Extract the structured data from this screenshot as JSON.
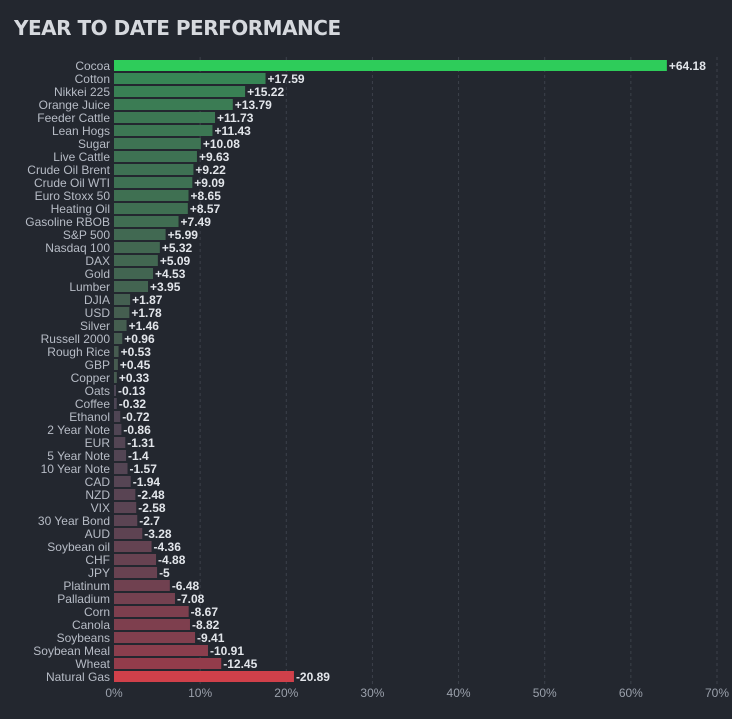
{
  "chart_data": {
    "type": "bar",
    "orientation": "horizontal",
    "title": "YEAR TO DATE PERFORMANCE",
    "xlabel": "",
    "ylabel": "",
    "xlim": [
      0,
      70
    ],
    "x_ticks": [
      "0%",
      "10%",
      "20%",
      "30%",
      "40%",
      "50%",
      "60%",
      "70%"
    ],
    "grid": true,
    "colors": {
      "positive_max": "#2ecc5a",
      "positive": "#3a8a5a",
      "negative": "#7a3a4a",
      "negative_max": "#d0404a"
    },
    "categories": [
      "Cocoa",
      "Cotton",
      "Nikkei 225",
      "Orange Juice",
      "Feeder Cattle",
      "Lean Hogs",
      "Sugar",
      "Live Cattle",
      "Crude Oil Brent",
      "Crude Oil WTI",
      "Euro Stoxx 50",
      "Heating Oil",
      "Gasoline RBOB",
      "S&P 500",
      "Nasdaq 100",
      "DAX",
      "Gold",
      "Lumber",
      "DJIA",
      "USD",
      "Silver",
      "Russell 2000",
      "Rough Rice",
      "GBP",
      "Copper",
      "Oats",
      "Coffee",
      "Ethanol",
      "2 Year Note",
      "EUR",
      "5 Year Note",
      "10 Year Note",
      "CAD",
      "NZD",
      "VIX",
      "30 Year Bond",
      "AUD",
      "Soybean oil",
      "CHF",
      "JPY",
      "Platinum",
      "Palladium",
      "Corn",
      "Canola",
      "Soybeans",
      "Soybean Meal",
      "Wheat",
      "Natural Gas"
    ],
    "values": [
      64.18,
      17.59,
      15.22,
      13.79,
      11.73,
      11.43,
      10.08,
      9.63,
      9.22,
      9.09,
      8.65,
      8.57,
      7.49,
      5.99,
      5.32,
      5.09,
      4.53,
      3.95,
      1.87,
      1.78,
      1.46,
      0.96,
      0.53,
      0.45,
      0.33,
      -0.13,
      -0.32,
      -0.72,
      -0.86,
      -1.31,
      -1.4,
      -1.57,
      -1.94,
      -2.48,
      -2.58,
      -2.7,
      -3.28,
      -4.36,
      -4.88,
      -5,
      -6.48,
      -7.08,
      -8.67,
      -8.82,
      -9.41,
      -10.91,
      -12.45,
      -20.89
    ],
    "value_labels": [
      "+64.18",
      "+17.59",
      "+15.22",
      "+13.79",
      "+11.73",
      "+11.43",
      "+10.08",
      "+9.63",
      "+9.22",
      "+9.09",
      "+8.65",
      "+8.57",
      "+7.49",
      "+5.99",
      "+5.32",
      "+5.09",
      "+4.53",
      "+3.95",
      "+1.87",
      "+1.78",
      "+1.46",
      "+0.96",
      "+0.53",
      "+0.45",
      "+0.33",
      "-0.13",
      "-0.32",
      "-0.72",
      "-0.86",
      "-1.31",
      "-1.4",
      "-1.57",
      "-1.94",
      "-2.48",
      "-2.58",
      "-2.7",
      "-3.28",
      "-4.36",
      "-4.88",
      "-5",
      "-6.48",
      "-7.08",
      "-8.67",
      "-8.82",
      "-9.41",
      "-10.91",
      "-12.45",
      "-20.89"
    ]
  }
}
